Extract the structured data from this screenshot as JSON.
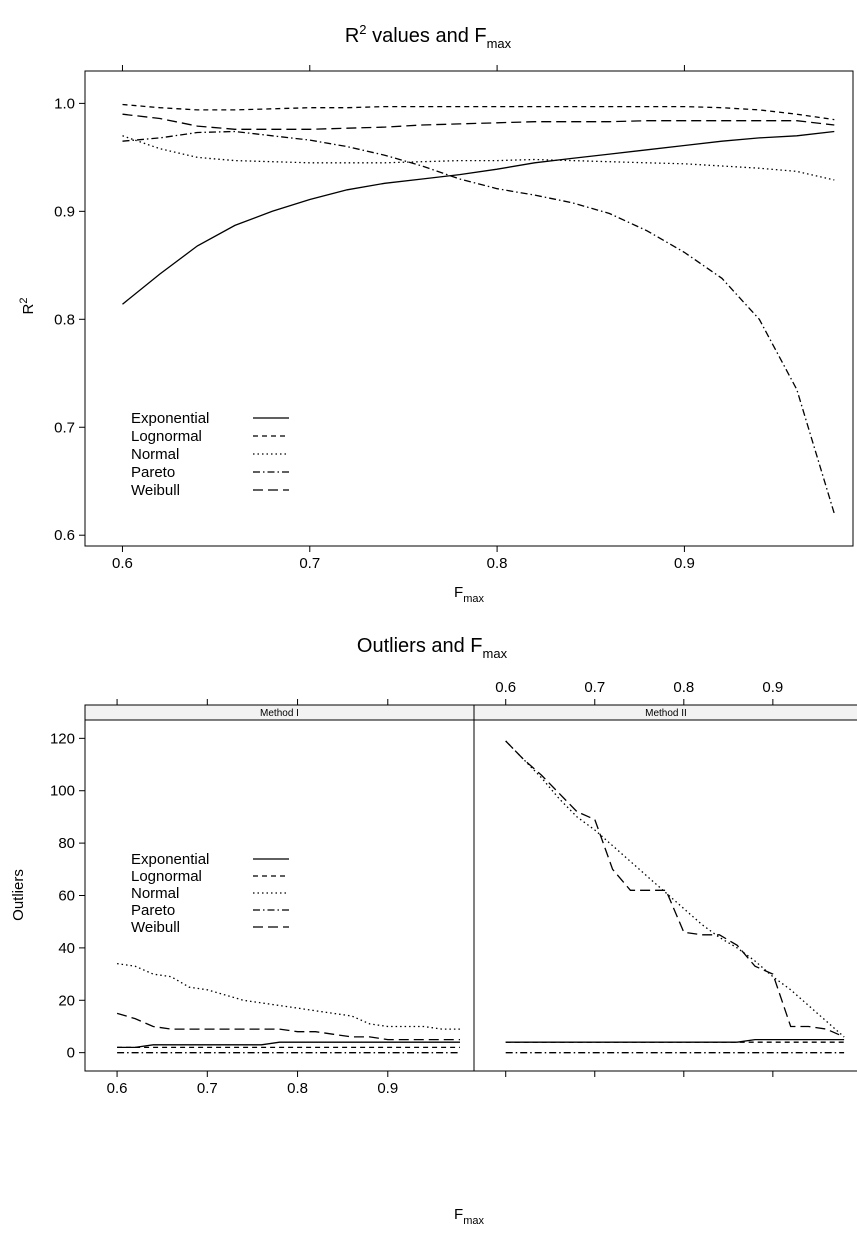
{
  "chart_data": [
    {
      "type": "line",
      "title": "R",
      "title_sup": "2",
      "title_mid": " values and F",
      "title_sub": "max",
      "xlabel": "F",
      "xlabel_sub": "max",
      "ylabel": "R",
      "ylabel_sup": "2",
      "xlim": [
        0.58,
        0.99
      ],
      "ylim": [
        0.59,
        1.03
      ],
      "x_ticks": [
        0.6,
        0.7,
        0.8,
        0.9
      ],
      "x_tick_labels": [
        "0.6",
        "0.7",
        "0.8",
        "0.9"
      ],
      "y_ticks": [
        0.6,
        0.7,
        0.8,
        0.9,
        1.0
      ],
      "y_tick_labels": [
        "0.6",
        "0.7",
        "0.8",
        "0.9",
        "1.0"
      ],
      "legend_position": "bottom-left",
      "grid": false,
      "x": [
        0.6,
        0.62,
        0.64,
        0.66,
        0.68,
        0.7,
        0.72,
        0.74,
        0.76,
        0.78,
        0.8,
        0.82,
        0.84,
        0.86,
        0.88,
        0.9,
        0.92,
        0.94,
        0.96,
        0.98
      ],
      "series": [
        {
          "name": "Exponential",
          "style": "solid",
          "values": [
            0.814,
            0.842,
            0.868,
            0.887,
            0.9,
            0.911,
            0.92,
            0.926,
            0.93,
            0.934,
            0.939,
            0.945,
            0.949,
            0.953,
            0.957,
            0.961,
            0.965,
            0.968,
            0.97,
            0.974
          ]
        },
        {
          "name": "Lognormal",
          "style": "short-dash",
          "values": [
            0.999,
            0.996,
            0.994,
            0.994,
            0.995,
            0.996,
            0.996,
            0.997,
            0.997,
            0.997,
            0.997,
            0.997,
            0.997,
            0.997,
            0.997,
            0.997,
            0.996,
            0.994,
            0.99,
            0.985
          ]
        },
        {
          "name": "Normal",
          "style": "dotted",
          "values": [
            0.97,
            0.958,
            0.95,
            0.947,
            0.946,
            0.945,
            0.945,
            0.945,
            0.946,
            0.947,
            0.947,
            0.948,
            0.947,
            0.946,
            0.945,
            0.944,
            0.942,
            0.94,
            0.937,
            0.929
          ]
        },
        {
          "name": "Pareto",
          "style": "dot-dash",
          "values": [
            0.965,
            0.968,
            0.973,
            0.974,
            0.97,
            0.966,
            0.96,
            0.952,
            0.942,
            0.93,
            0.921,
            0.915,
            0.908,
            0.898,
            0.882,
            0.862,
            0.838,
            0.8,
            0.735,
            0.62
          ]
        },
        {
          "name": "Weibull",
          "style": "long-dash",
          "values": [
            0.99,
            0.986,
            0.979,
            0.976,
            0.976,
            0.976,
            0.977,
            0.978,
            0.98,
            0.981,
            0.982,
            0.983,
            0.983,
            0.983,
            0.984,
            0.984,
            0.984,
            0.984,
            0.984,
            0.98
          ]
        }
      ]
    },
    {
      "type": "line",
      "title": "Outliers and F",
      "title_sub": "max",
      "xlabel": "F",
      "xlabel_sub": "max",
      "ylabel": "Outliers",
      "xlim": [
        0.57,
        0.99
      ],
      "ylim": [
        -7,
        127
      ],
      "x_ticks": [
        0.6,
        0.7,
        0.8,
        0.9
      ],
      "x_tick_labels": [
        "0.6",
        "0.7",
        "0.8",
        "0.9"
      ],
      "y_ticks": [
        0,
        20,
        40,
        60,
        80,
        100,
        120
      ],
      "y_tick_labels": [
        "0",
        "20",
        "40",
        "60",
        "80",
        "100",
        "120"
      ],
      "legend_position": "middle-left",
      "grid": false,
      "x": [
        0.6,
        0.62,
        0.64,
        0.66,
        0.68,
        0.7,
        0.72,
        0.74,
        0.76,
        0.78,
        0.8,
        0.82,
        0.84,
        0.86,
        0.88,
        0.9,
        0.92,
        0.94,
        0.96,
        0.98
      ],
      "panels": [
        {
          "label": "Method I",
          "series": [
            {
              "name": "Exponential",
              "style": "solid",
              "values": [
                2,
                2,
                3,
                3,
                3,
                3,
                3,
                3,
                3,
                4,
                4,
                4,
                4,
                4,
                4,
                4,
                4,
                4,
                4,
                4
              ]
            },
            {
              "name": "Lognormal",
              "style": "short-dash",
              "values": [
                2,
                2,
                2,
                2,
                2,
                2,
                2,
                2,
                2,
                2,
                2,
                2,
                2,
                2,
                2,
                2,
                2,
                2,
                2,
                2
              ]
            },
            {
              "name": "Normal",
              "style": "dotted",
              "values": [
                34,
                33,
                30,
                29,
                25,
                24,
                22,
                20,
                19,
                18,
                17,
                16,
                15,
                14,
                11,
                10,
                10,
                10,
                9,
                9
              ]
            },
            {
              "name": "Pareto",
              "style": "dot-dash",
              "values": [
                0,
                0,
                0,
                0,
                0,
                0,
                0,
                0,
                0,
                0,
                0,
                0,
                0,
                0,
                0,
                0,
                0,
                0,
                0,
                0
              ]
            },
            {
              "name": "Weibull",
              "style": "long-dash",
              "values": [
                15,
                13,
                10,
                9,
                9,
                9,
                9,
                9,
                9,
                9,
                8,
                8,
                7,
                6,
                6,
                5,
                5,
                5,
                5,
                5
              ]
            }
          ]
        },
        {
          "label": "Method II",
          "series": [
            {
              "name": "Exponential",
              "style": "solid",
              "values": [
                4,
                4,
                4,
                4,
                4,
                4,
                4,
                4,
                4,
                4,
                4,
                4,
                4,
                4,
                5,
                5,
                5,
                5,
                5,
                5
              ]
            },
            {
              "name": "Lognormal",
              "style": "short-dash",
              "values": [
                4,
                4,
                4,
                4,
                4,
                4,
                4,
                4,
                4,
                4,
                4,
                4,
                4,
                4,
                4,
                4,
                4,
                4,
                4,
                4
              ]
            },
            {
              "name": "Normal",
              "style": "dotted",
              "values": [
                119,
                112,
                105,
                97,
                90,
                85,
                79,
                73,
                67,
                61,
                55,
                49,
                44,
                40,
                35,
                29,
                24,
                18,
                12,
                6
              ]
            },
            {
              "name": "Pareto",
              "style": "dot-dash",
              "values": [
                0,
                0,
                0,
                0,
                0,
                0,
                0,
                0,
                0,
                0,
                0,
                0,
                0,
                0,
                0,
                0,
                0,
                0,
                0,
                0
              ]
            },
            {
              "name": "Weibull",
              "style": "long-dash",
              "values": [
                119,
                112,
                106,
                99,
                92,
                89,
                70,
                62,
                62,
                62,
                46,
                45,
                45,
                41,
                33,
                30,
                10,
                10,
                9,
                6
              ]
            }
          ]
        }
      ]
    }
  ]
}
